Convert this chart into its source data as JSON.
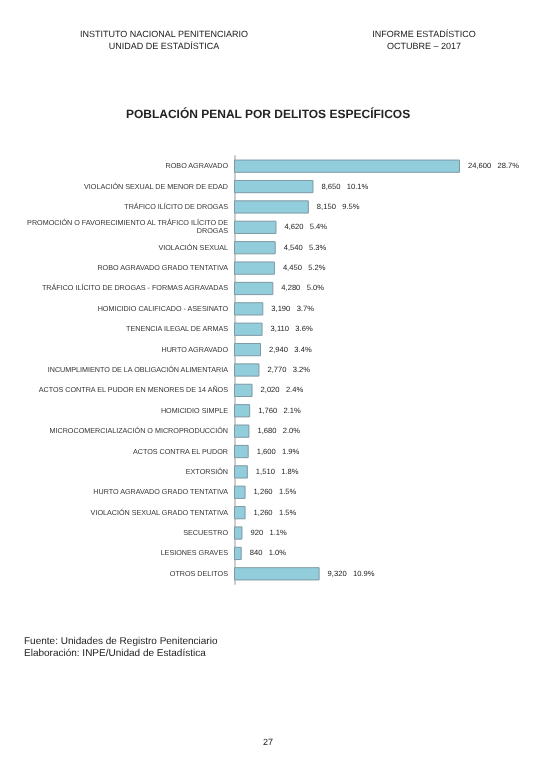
{
  "chart_data": {
    "type": "bar",
    "orientation": "horizontal",
    "title": "POBLACIÓN PENAL POR DELITOS ESPECÍFICOS",
    "annotations": [
      "INSTITUTO NACIONAL PENITENCIARIO\nUNIDAD DE ESTADÍSTICA",
      "INFORME ESTADÍSTICO\nOCTUBRE – 2017",
      "Fuente: Unidades de Registro Penitenciario\nElaboración: INPE/Unidad de Estadística",
      "27"
    ],
    "categories": [
      "ROBO AGRAVADO",
      "VIOLACIÓN SEXUAL DE MENOR DE EDAD",
      "TRÁFICO ILÍCITO DE DROGAS",
      "PROMOCIÓN O FAVORECIMIENTO AL TRÁFICO ILÍCITO DE DROGAS",
      "VIOLACIÓN SEXUAL",
      "ROBO AGRAVADO GRADO TENTATIVA",
      "TRÁFICO ILÍCITO DE DROGAS - FORMAS AGRAVADAS",
      "HOMICIDIO CALIFICADO - ASESINATO",
      "TENENCIA ILEGAL DE ARMAS",
      "HURTO AGRAVADO",
      "INCUMPLIMIENTO DE LA OBLIGACIÓN ALIMENTARIA",
      "ACTOS CONTRA EL PUDOR EN MENORES DE 14 AÑOS",
      "HOMICIDIO SIMPLE",
      "MICROCOMERCIALIZACIÓN O MICROPRODUCCIÓN",
      "ACTOS CONTRA EL PUDOR",
      "EXTORSIÓN",
      "HURTO AGRAVADO GRADO TENTATIVA",
      "VIOLACIÓN SEXUAL GRADO TENTATIVA",
      "SECUESTRO",
      "LESIONES GRAVES",
      "OTROS DELITOS"
    ],
    "values": [
      24600,
      8650,
      8150,
      4620,
      4540,
      4450,
      4280,
      3190,
      3110,
      2940,
      2770,
      2020,
      1760,
      1680,
      1600,
      1510,
      1260,
      1260,
      920,
      840,
      9320
    ],
    "value_labels": [
      "24,600   28.7%",
      "8,650   10.1%",
      "8,150   9.5%",
      "4,620   5.4%",
      "4,540   5.3%",
      "4,450   5.2%",
      "4,280   5.0%",
      "3,190   3.7%",
      "3,110   3.6%",
      "2,940   3.4%",
      "2,770   3.2%",
      "2,020   2.4%",
      "1,760   2.1%",
      "1,680   2.0%",
      "1,600   1.9%",
      "1,510   1.8%",
      "1,260   1.5%",
      "1,260   1.5%",
      "920   1.1%",
      "840   1.0%",
      "9,320   10.9%"
    ],
    "color": "#92cddc"
  }
}
